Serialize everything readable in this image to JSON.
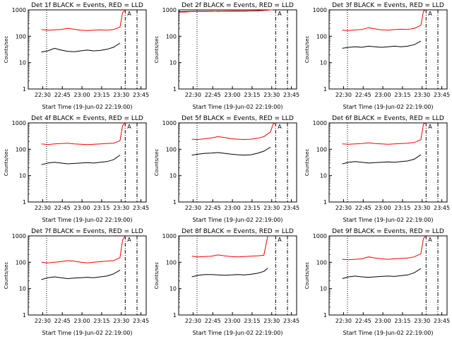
{
  "xlabel": "Start Time (19-Jun-02 22:19:00)",
  "ylabel": "Counts/sec",
  "colors": {
    "events": "#000000",
    "lld": "#ff0000"
  },
  "x_ticks": [
    "22:30",
    "22:45",
    "23:00",
    "23:15",
    "23:30",
    "23:45"
  ],
  "y_ticks": [
    "1",
    "10",
    "100",
    "1000"
  ],
  "panel_marker": "A",
  "chart_data": [
    {
      "type": "line",
      "title": "Det 1f BLACK = Events, RED = LLD",
      "xlabel": "Start Time (19-Jun-02 22:19:00)",
      "ylabel": "Counts/sec",
      "yscale": "log",
      "ylim": [
        1,
        1000
      ],
      "x_minutes": [
        8,
        10,
        15,
        20,
        25,
        30,
        35,
        40,
        45,
        50,
        55,
        60,
        65,
        70,
        72,
        74
      ],
      "series": [
        {
          "name": "Events",
          "values": [
            null,
            25,
            28,
            35,
            30,
            27,
            26,
            28,
            30,
            28,
            29,
            32,
            38,
            55,
            null,
            null
          ]
        },
        {
          "name": "LLD",
          "values": [
            null,
            180,
            170,
            175,
            180,
            200,
            185,
            170,
            165,
            170,
            175,
            170,
            180,
            220,
            800,
            1000
          ]
        }
      ],
      "vlines": [
        {
          "minute": 14,
          "style": "dotted"
        },
        {
          "minute": 74,
          "style": "dash-dot"
        },
        {
          "minute": 83,
          "style": "dash-dot"
        }
      ]
    },
    {
      "type": "line",
      "title": "Det 2f BLACK = Events, RED = LLD",
      "xlabel": "Start Time (19-Jun-02 22:19:00)",
      "ylabel": "Counts/sec",
      "yscale": "log",
      "ylim": [
        1,
        1000
      ],
      "x_minutes": [
        0,
        5,
        10,
        15,
        20,
        25,
        30,
        35,
        40,
        45,
        50,
        55,
        60,
        65,
        70,
        72,
        74
      ],
      "series": [
        {
          "name": "Events",
          "values": [
            850,
            860,
            870,
            880,
            880,
            890,
            880,
            890,
            895,
            900,
            900,
            910,
            920,
            950,
            1000,
            null,
            null
          ]
        },
        {
          "name": "LLD",
          "values": [
            820,
            830,
            860,
            880,
            870,
            880,
            890,
            890,
            900,
            910,
            900,
            920,
            930,
            970,
            1000,
            1000,
            null
          ]
        }
      ],
      "vlines": [
        {
          "minute": 14,
          "style": "dotted"
        },
        {
          "minute": 74,
          "style": "dash-dot"
        },
        {
          "minute": 83,
          "style": "dash-dot"
        }
      ]
    },
    {
      "type": "line",
      "title": "Det 3f BLACK = Events, RED = LLD",
      "xlabel": "Start Time (19-Jun-02 22:19:00)",
      "ylabel": "Counts/sec",
      "yscale": "log",
      "ylim": [
        1,
        1000
      ],
      "x_minutes": [
        8,
        10,
        15,
        20,
        25,
        30,
        35,
        40,
        45,
        50,
        55,
        60,
        65,
        70,
        72,
        74
      ],
      "series": [
        {
          "name": "Events",
          "values": [
            null,
            35,
            38,
            40,
            38,
            42,
            40,
            38,
            40,
            42,
            40,
            42,
            48,
            65,
            null,
            null
          ]
        },
        {
          "name": "LLD",
          "values": [
            null,
            170,
            165,
            175,
            180,
            210,
            190,
            175,
            170,
            180,
            185,
            180,
            200,
            260,
            900,
            1000
          ]
        }
      ],
      "vlines": [
        {
          "minute": 14,
          "style": "dotted"
        },
        {
          "minute": 74,
          "style": "dash-dot"
        },
        {
          "minute": 83,
          "style": "dash-dot"
        }
      ]
    },
    {
      "type": "line",
      "title": "Det 4f BLACK = Events, RED = LLD",
      "xlabel": "Start Time (19-Jun-02 22:19:00)",
      "ylabel": "Counts/sec",
      "yscale": "log",
      "ylim": [
        1,
        1000
      ],
      "x_minutes": [
        8,
        10,
        15,
        20,
        25,
        30,
        35,
        40,
        45,
        50,
        55,
        60,
        65,
        70,
        72,
        74
      ],
      "series": [
        {
          "name": "Events",
          "values": [
            null,
            26,
            30,
            32,
            30,
            28,
            29,
            30,
            31,
            30,
            32,
            34,
            40,
            60,
            null,
            null
          ]
        },
        {
          "name": "LLD",
          "values": [
            null,
            160,
            150,
            160,
            165,
            170,
            160,
            155,
            150,
            155,
            160,
            165,
            170,
            210,
            800,
            1000
          ]
        }
      ],
      "vlines": [
        {
          "minute": 14,
          "style": "dotted"
        },
        {
          "minute": 74,
          "style": "dash-dot"
        },
        {
          "minute": 83,
          "style": "dash-dot"
        }
      ]
    },
    {
      "type": "line",
      "title": "Det 5f BLACK = Events, RED = LLD",
      "xlabel": "Start Time (19-Jun-02 22:19:00)",
      "ylabel": "Counts/sec",
      "yscale": "log",
      "ylim": [
        1,
        1000
      ],
      "x_minutes": [
        8,
        10,
        15,
        20,
        25,
        30,
        35,
        40,
        45,
        50,
        55,
        60,
        65,
        70,
        72,
        74
      ],
      "series": [
        {
          "name": "Events",
          "values": [
            null,
            60,
            65,
            70,
            72,
            75,
            70,
            65,
            62,
            60,
            62,
            70,
            85,
            120,
            null,
            null
          ]
        },
        {
          "name": "LLD",
          "values": [
            null,
            240,
            235,
            250,
            270,
            300,
            280,
            250,
            240,
            235,
            240,
            260,
            300,
            450,
            900,
            1000
          ]
        }
      ],
      "vlines": [
        {
          "minute": 14,
          "style": "dotted"
        },
        {
          "minute": 74,
          "style": "dash-dot"
        },
        {
          "minute": 83,
          "style": "dash-dot"
        }
      ]
    },
    {
      "type": "line",
      "title": "Det 6f BLACK = Events, RED = LLD",
      "xlabel": "Start Time (19-Jun-02 22:19:00)",
      "ylabel": "Counts/sec",
      "yscale": "log",
      "ylim": [
        1,
        1000
      ],
      "x_minutes": [
        8,
        10,
        15,
        20,
        25,
        30,
        35,
        40,
        45,
        50,
        55,
        60,
        65,
        70,
        72,
        74
      ],
      "series": [
        {
          "name": "Events",
          "values": [
            null,
            28,
            32,
            34,
            32,
            30,
            31,
            32,
            33,
            32,
            34,
            36,
            42,
            62,
            null,
            null
          ]
        },
        {
          "name": "LLD",
          "values": [
            null,
            160,
            155,
            160,
            165,
            175,
            165,
            160,
            155,
            160,
            165,
            170,
            180,
            230,
            900,
            1000
          ]
        }
      ],
      "vlines": [
        {
          "minute": 14,
          "style": "dotted"
        },
        {
          "minute": 74,
          "style": "dash-dot"
        },
        {
          "minute": 83,
          "style": "dash-dot"
        }
      ]
    },
    {
      "type": "line",
      "title": "Det 7f BLACK = Events, RED = LLD",
      "xlabel": "Start Time (19-Jun-02 22:19:00)",
      "ylabel": "Counts/sec",
      "yscale": "log",
      "ylim": [
        1,
        1000
      ],
      "x_minutes": [
        8,
        10,
        15,
        20,
        25,
        30,
        35,
        40,
        45,
        50,
        55,
        60,
        65,
        70,
        72,
        74
      ],
      "series": [
        {
          "name": "Events",
          "values": [
            null,
            22,
            26,
            28,
            26,
            24,
            25,
            26,
            27,
            26,
            28,
            30,
            36,
            50,
            null,
            null
          ]
        },
        {
          "name": "LLD",
          "values": [
            null,
            100,
            95,
            100,
            105,
            115,
            110,
            100,
            95,
            100,
            105,
            110,
            115,
            150,
            700,
            1000
          ]
        }
      ],
      "vlines": [
        {
          "minute": 14,
          "style": "dotted"
        },
        {
          "minute": 74,
          "style": "dash-dot"
        },
        {
          "minute": 83,
          "style": "dash-dot"
        }
      ]
    },
    {
      "type": "line",
      "title": "Det 8f BLACK = Events, RED = LLD",
      "xlabel": "Start Time (19-Jun-02 22:19:00)",
      "ylabel": "Counts/sec",
      "yscale": "log",
      "ylim": [
        1,
        1000
      ],
      "x_minutes": [
        8,
        10,
        15,
        20,
        25,
        30,
        35,
        40,
        45,
        50,
        55,
        60,
        65,
        68,
        70,
        72
      ],
      "series": [
        {
          "name": "Events",
          "values": [
            null,
            28,
            32,
            34,
            34,
            33,
            32,
            33,
            34,
            33,
            35,
            38,
            45,
            60,
            null,
            null
          ]
        },
        {
          "name": "LLD",
          "values": [
            null,
            170,
            160,
            165,
            170,
            190,
            175,
            165,
            160,
            165,
            170,
            175,
            185,
            1000,
            null,
            null
          ]
        }
      ],
      "vlines": [
        {
          "minute": 14,
          "style": "dotted"
        },
        {
          "minute": 74,
          "style": "dash-dot"
        },
        {
          "minute": 83,
          "style": "dash-dot"
        }
      ]
    },
    {
      "type": "line",
      "title": "Det 9f BLACK = Events, RED = LLD",
      "xlabel": "Start Time (19-Jun-02 22:19:00)",
      "ylabel": "Counts/sec",
      "yscale": "log",
      "ylim": [
        1,
        1000
      ],
      "x_minutes": [
        8,
        10,
        15,
        20,
        25,
        30,
        35,
        40,
        45,
        50,
        55,
        60,
        65,
        70,
        72,
        74
      ],
      "series": [
        {
          "name": "Events",
          "values": [
            null,
            24,
            28,
            30,
            28,
            27,
            28,
            29,
            30,
            29,
            31,
            33,
            40,
            58,
            null,
            null
          ]
        },
        {
          "name": "LLD",
          "values": [
            null,
            130,
            125,
            130,
            135,
            160,
            145,
            135,
            130,
            135,
            140,
            145,
            160,
            210,
            800,
            1000
          ]
        }
      ],
      "vlines": [
        {
          "minute": 14,
          "style": "dotted"
        },
        {
          "minute": 74,
          "style": "dash-dot"
        },
        {
          "minute": 83,
          "style": "dash-dot"
        }
      ]
    }
  ]
}
